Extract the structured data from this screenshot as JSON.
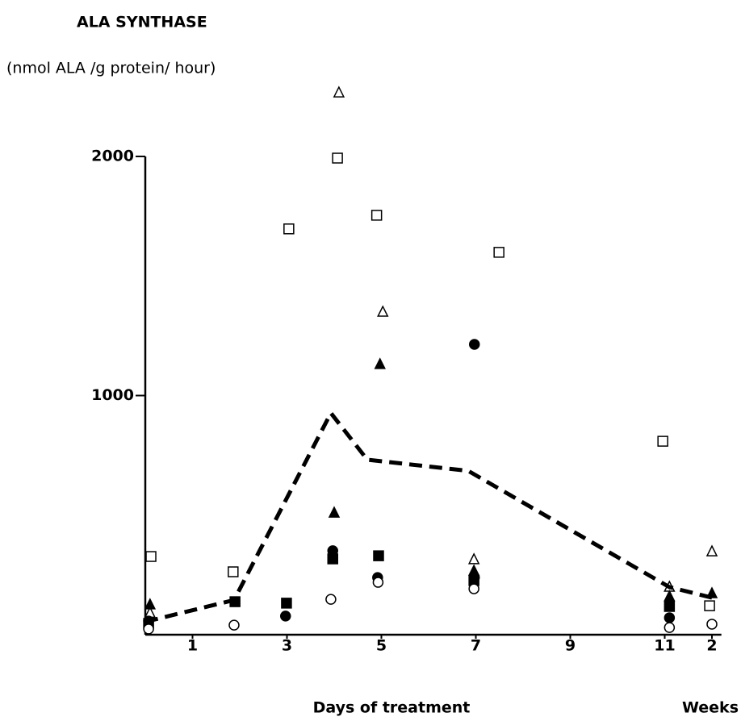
{
  "chart_data": {
    "type": "scatter",
    "title": "ALA SYNTHASE",
    "y_label": "(nmol ALA /g protein/ hour)",
    "x_label": "Days of treatment",
    "x2_label": "Weeks",
    "xlim": [
      0,
      12.2
    ],
    "ylim": [
      0,
      2300
    ],
    "xticks": [
      1,
      3,
      5,
      7,
      9,
      11,
      {
        "value": 12,
        "label": "2"
      }
    ],
    "yticks": [
      1000,
      2000
    ],
    "grid": false,
    "series": [
      {
        "marker": "square",
        "filled": false,
        "color": "#000000",
        "x": [
          0.12,
          1.86,
          3.04,
          4.07,
          4.9,
          7.49,
          10.96,
          11.95
        ],
        "values": [
          327,
          263,
          1697,
          1993,
          1754,
          1599,
          809,
          121
        ]
      },
      {
        "marker": "triangle",
        "filled": false,
        "color": "#000000",
        "x": [
          0.1,
          4.1,
          5.03,
          6.96,
          11.1,
          12
        ],
        "values": [
          90,
          2266,
          1349,
          314,
          199,
          347
        ]
      },
      {
        "marker": "triangle",
        "filled": true,
        "color": "#000000",
        "x": [
          0.1,
          4,
          4.97,
          6.96,
          11.1,
          12
        ],
        "values": [
          125,
          509,
          1130,
          266,
          159,
          172
        ]
      },
      {
        "marker": "circle",
        "filled": true,
        "color": "#000000",
        "x": [
          0.07,
          2.97,
          3.97,
          4.92,
          6.97,
          6.97,
          11.1
        ],
        "values": [
          57,
          78,
          351,
          239,
          1214,
          239,
          71
        ]
      },
      {
        "marker": "square",
        "filled": true,
        "color": "#000000",
        "x": [
          0.07,
          1.9,
          2.99,
          3.97,
          4.94,
          6.96,
          11.1
        ],
        "values": [
          47,
          138,
          132,
          317,
          330,
          226,
          118
        ]
      },
      {
        "marker": "circle",
        "filled": false,
        "color": "#000000",
        "x": [
          0.07,
          1.88,
          3.93,
          4.93,
          6.96,
          11.1,
          12
        ],
        "values": [
          24,
          40,
          148,
          219,
          192,
          30,
          44
        ]
      },
      {
        "marker": "dashed-line",
        "color": "#000000",
        "x": [
          0,
          1.88,
          3.93,
          4.7,
          6.84,
          11.1,
          12
        ],
        "values": [
          54,
          145,
          927,
          732,
          685,
          199,
          155
        ]
      }
    ]
  }
}
